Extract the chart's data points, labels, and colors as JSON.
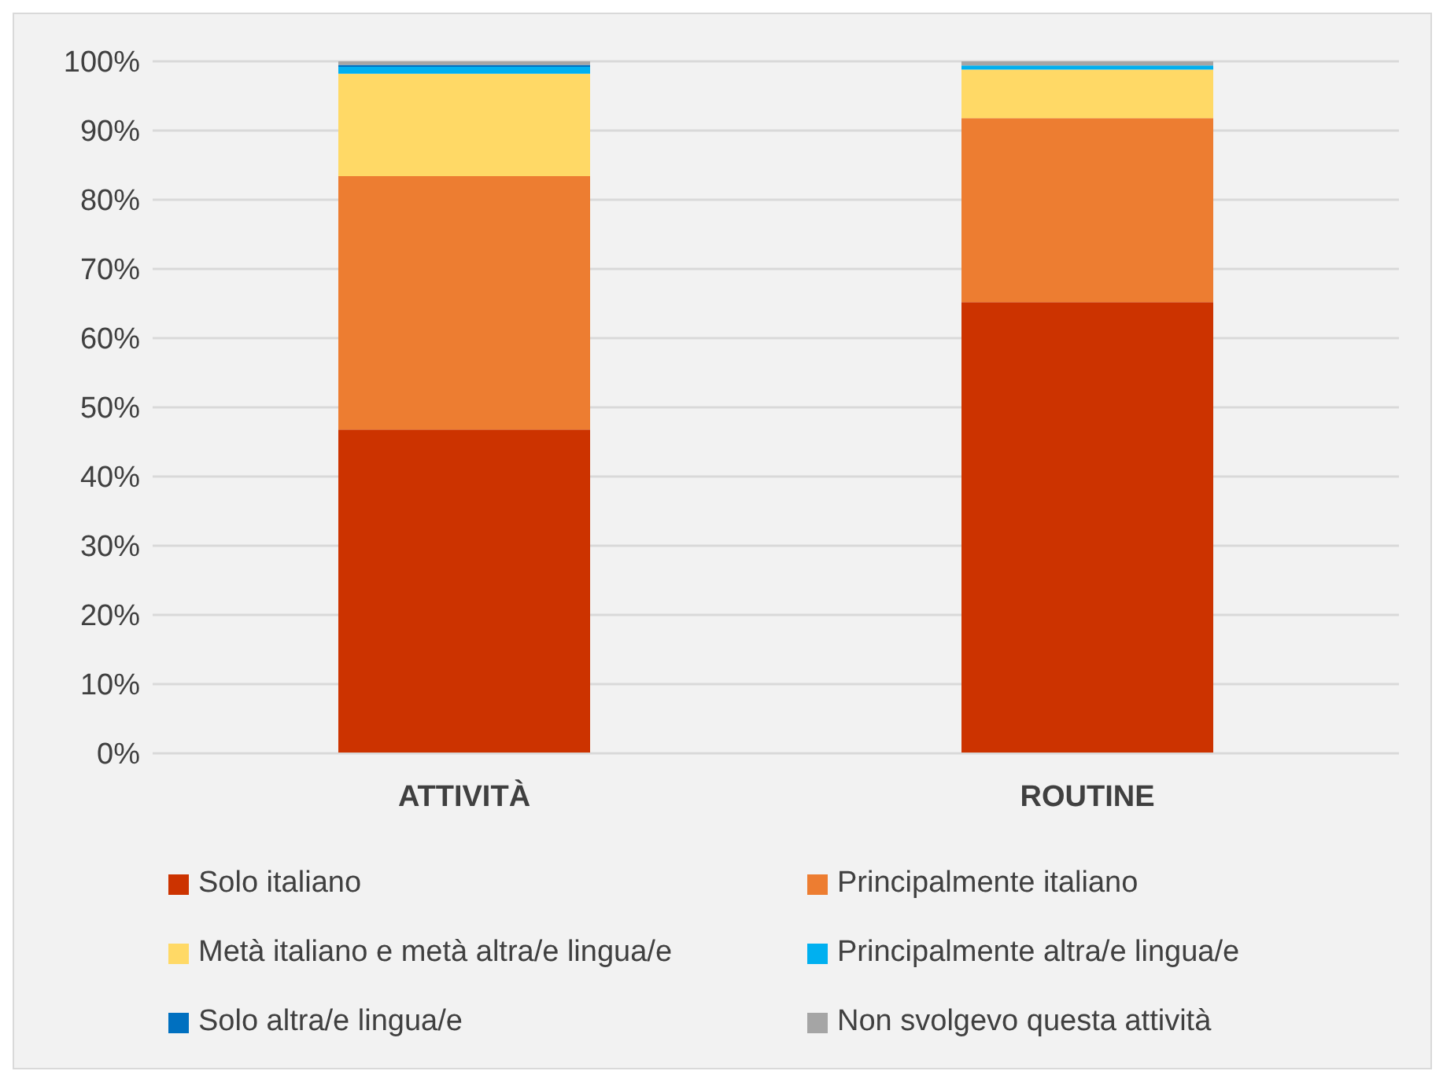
{
  "chart_data": {
    "type": "bar",
    "stacked": true,
    "categories": [
      "ATTIVITÀ",
      "ROUTINE"
    ],
    "series": [
      {
        "name": "Solo italiano",
        "color": "#cc3300",
        "values": [
          46.8,
          65.2
        ]
      },
      {
        "name": "Principalmente italiano",
        "color": "#ed7d31",
        "values": [
          36.6,
          26.6
        ]
      },
      {
        "name": "Metà italiano e metà altra/e lingua/e",
        "color": "#ffd966",
        "values": [
          14.8,
          7.0
        ]
      },
      {
        "name": "Principalmente altra/e lingua/e",
        "color": "#00b0f0",
        "values": [
          1.0,
          0.6
        ]
      },
      {
        "name": "Solo altra/e lingua/e",
        "color": "#0070c0",
        "values": [
          0.3,
          0.0
        ]
      },
      {
        "name": "Non svolgevo questa attività",
        "color": "#a5a5a5",
        "values": [
          0.5,
          0.6
        ]
      }
    ],
    "ylim": [
      0,
      100
    ],
    "yticks": [
      {
        "value": 0,
        "label": "0%"
      },
      {
        "value": 10,
        "label": "10%"
      },
      {
        "value": 20,
        "label": "20%"
      },
      {
        "value": 30,
        "label": "30%"
      },
      {
        "value": 40,
        "label": "40%"
      },
      {
        "value": 50,
        "label": "50%"
      },
      {
        "value": 60,
        "label": "60%"
      },
      {
        "value": 70,
        "label": "70%"
      },
      {
        "value": 80,
        "label": "80%"
      },
      {
        "value": 90,
        "label": "90%"
      },
      {
        "value": 100,
        "label": "100%"
      }
    ],
    "grid": "y",
    "legend": "bottom"
  }
}
